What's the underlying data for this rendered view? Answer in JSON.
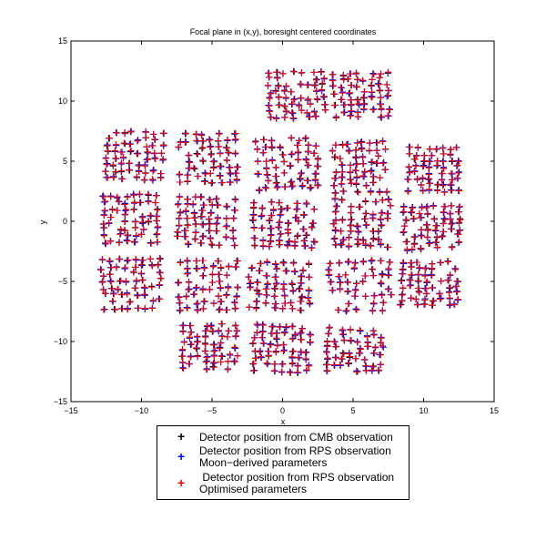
{
  "chart_data": {
    "type": "scatter",
    "title": "Focal plane in (x,y), boresight centered coordinates",
    "xlabel": "x",
    "ylabel": "y",
    "xlim": [
      -15,
      15
    ],
    "ylim": [
      -15,
      15
    ],
    "x_ticks": [
      "−15",
      "−10",
      "−5",
      "0",
      "5",
      "10",
      "15"
    ],
    "y_ticks": [
      "−15",
      "−10",
      "−5",
      "0",
      "5",
      "10",
      "15"
    ],
    "grid": false,
    "legend_position": "bottom-center",
    "series": [
      {
        "name": "Detector position from CMB observation",
        "name_line2": "",
        "color": "#000000",
        "marker": "+"
      },
      {
        "name": "Detector position from RPS observation",
        "name_line2": "Moon−derived parameters",
        "color": "#0000ff",
        "marker": "+"
      },
      {
        "name": " Detector position from RPS observation",
        "name_line2": "Optimised parameters",
        "color": "#ff0000",
        "marker": "+"
      }
    ],
    "module_centers": [
      {
        "x": 1.0,
        "y": 10.5,
        "w": 3.8,
        "h": 3.8
      },
      {
        "x": 5.6,
        "y": 10.5,
        "w": 3.8,
        "h": 3.6
      },
      {
        "x": -10.5,
        "y": 5.5,
        "w": 3.9,
        "h": 3.8
      },
      {
        "x": -5.3,
        "y": 5.3,
        "w": 4.0,
        "h": 4.0
      },
      {
        "x": 0.3,
        "y": 4.8,
        "w": 4.2,
        "h": 4.0
      },
      {
        "x": 5.5,
        "y": 4.5,
        "w": 3.6,
        "h": 4.0
      },
      {
        "x": 10.7,
        "y": 4.3,
        "w": 3.4,
        "h": 3.6
      },
      {
        "x": -10.8,
        "y": 0.2,
        "w": 3.8,
        "h": 3.8
      },
      {
        "x": -5.4,
        "y": 0.0,
        "w": 3.9,
        "h": 3.8
      },
      {
        "x": 0.1,
        "y": -0.3,
        "w": 4.2,
        "h": 3.6
      },
      {
        "x": 5.6,
        "y": -0.1,
        "w": 3.8,
        "h": 3.8
      },
      {
        "x": 10.6,
        "y": -0.5,
        "w": 3.8,
        "h": 3.4
      },
      {
        "x": -10.7,
        "y": -5.2,
        "w": 4.0,
        "h": 4.0
      },
      {
        "x": -5.3,
        "y": -5.3,
        "w": 4.0,
        "h": 4.0
      },
      {
        "x": -0.2,
        "y": -5.4,
        "w": 4.2,
        "h": 3.8
      },
      {
        "x": 5.5,
        "y": -5.4,
        "w": 4.2,
        "h": 4.0
      },
      {
        "x": 10.4,
        "y": -5.2,
        "w": 3.8,
        "h": 3.6
      },
      {
        "x": -5.2,
        "y": -10.4,
        "w": 3.8,
        "h": 3.6
      },
      {
        "x": -0.1,
        "y": -10.6,
        "w": 3.8,
        "h": 3.6
      },
      {
        "x": 5.1,
        "y": -10.7,
        "w": 3.8,
        "h": 3.4
      }
    ],
    "grid_points_per_module": 8
  }
}
